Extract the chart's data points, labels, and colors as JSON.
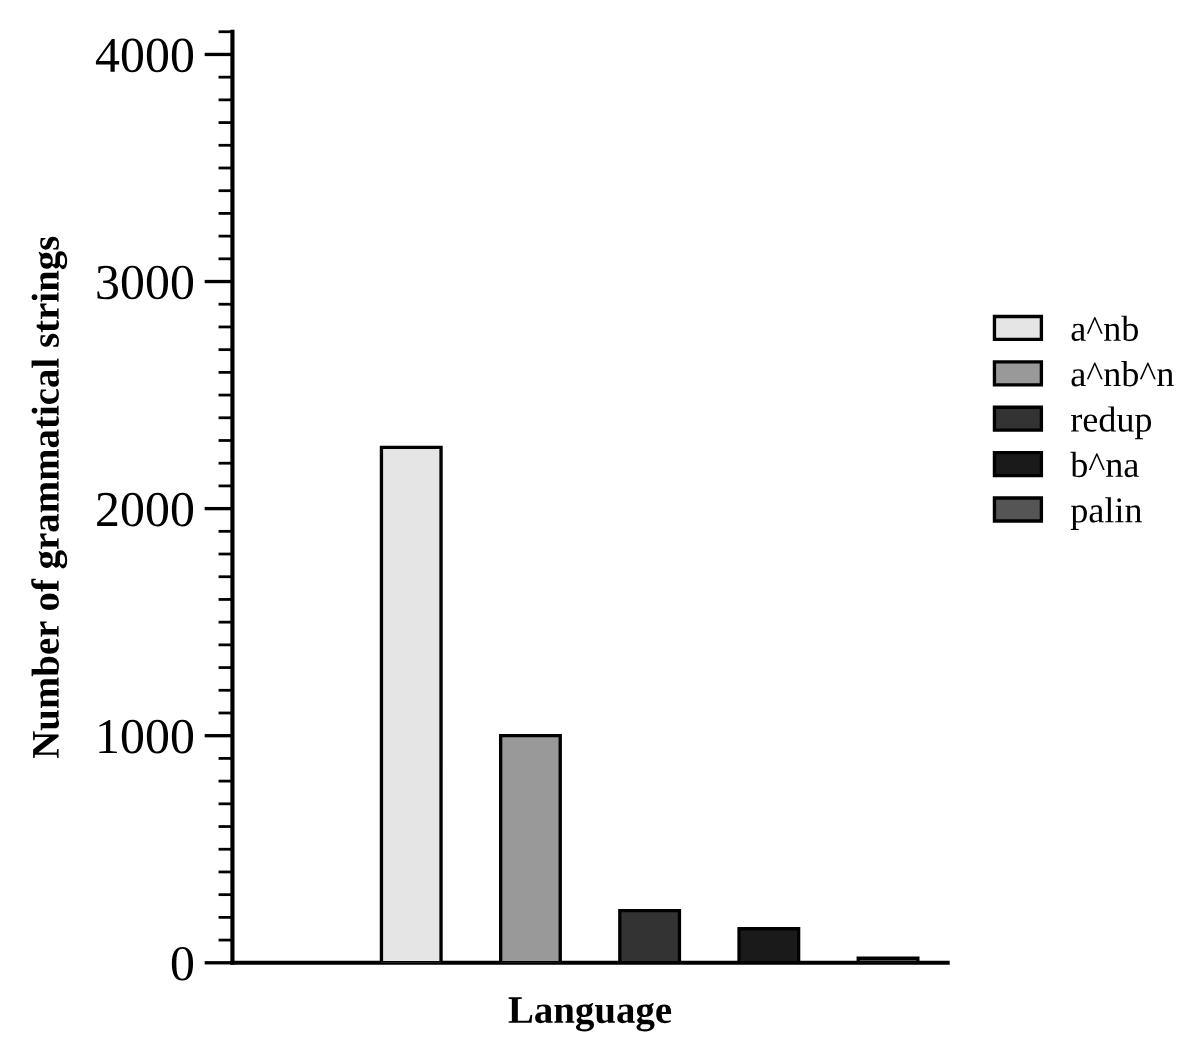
{
  "chart_data": {
    "type": "bar",
    "xlabel": "Language",
    "ylabel": "Number of grammatical strings",
    "categories": [
      null,
      null,
      null,
      null,
      null,
      null
    ],
    "series": [
      {
        "name": "a^nb",
        "color": "#e5e5e5",
        "values": [
          null,
          2270,
          null,
          null,
          null,
          null
        ]
      },
      {
        "name": "a^nb^n",
        "color": "#999999",
        "values": [
          null,
          null,
          1000,
          null,
          null,
          null
        ]
      },
      {
        "name": "redup",
        "color": "#333333",
        "values": [
          null,
          null,
          null,
          230,
          null,
          null
        ]
      },
      {
        "name": "b^na",
        "color": "#1a1a1a",
        "values": [
          null,
          null,
          null,
          null,
          150,
          null
        ]
      },
      {
        "name": "palin",
        "color": "#555555",
        "values": [
          null,
          null,
          null,
          null,
          null,
          20
        ]
      }
    ],
    "ylim": [
      0,
      4100
    ],
    "yticks": [
      0,
      1000,
      2000,
      3000,
      4000
    ],
    "grid": false,
    "legend": "right",
    "tick_labels": "y"
  }
}
